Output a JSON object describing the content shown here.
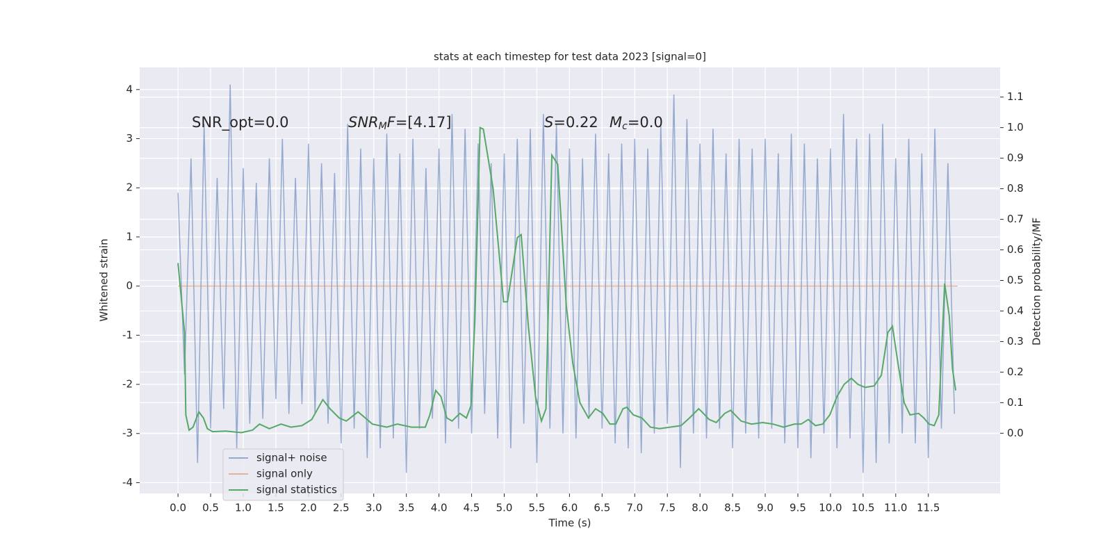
{
  "chart_data": {
    "type": "line",
    "title": "stats at each timestep for test data 2023 [signal=0]",
    "xlabel": "Time (s)",
    "ylabel": "Whitened strain",
    "y2label": "Detection probability/MF",
    "annotations": [
      [
        "SNR_opt=0.0"
      ],
      [
        "SNR",
        "M",
        "F",
        "=[4.17]"
      ],
      [
        "S",
        "=0.22"
      ],
      [
        "M",
        "c",
        "=0.0"
      ]
    ],
    "xlim": [
      -0.587,
      12.6
    ],
    "xticks": [
      {
        "value": 0,
        "label": "0.0"
      },
      0.5,
      {
        "value": 1,
        "label": "1.0"
      },
      1.5,
      {
        "value": 2,
        "label": "2.0"
      },
      2.5,
      {
        "value": 3,
        "label": "3.0"
      },
      3.5,
      {
        "value": 4,
        "label": "4.0"
      },
      4.5,
      {
        "value": 5,
        "label": "5.0"
      },
      5.5,
      {
        "value": 6,
        "label": "6.0"
      },
      6.5,
      {
        "value": 7,
        "label": "7.0"
      },
      7.5,
      {
        "value": 8,
        "label": "8.0"
      },
      8.5,
      {
        "value": 9,
        "label": "9.0"
      },
      9.5,
      {
        "value": 10,
        "label": "10.0"
      },
      10.5,
      {
        "value": 11,
        "label": "11.0"
      },
      11.5
    ],
    "ylim": [
      -4.22,
      4.45
    ],
    "yticks": [
      -4,
      -3,
      -2,
      -1,
      0,
      1,
      2,
      3,
      4
    ],
    "y2lim": [
      -0.197,
      1.197
    ],
    "y2ticks": [
      {
        "value": 0,
        "label": "0.0"
      },
      0.1,
      0.2,
      0.3,
      0.4,
      0.5,
      0.6,
      0.7,
      0.8,
      0.9,
      {
        "value": 1,
        "label": "1.0"
      },
      1.1
    ],
    "grid": true,
    "legend_loc": "lower left",
    "series": [
      {
        "name": "signal+ noise",
        "color": "#4c72b0",
        "x": [
          0,
          0.1,
          0.2,
          0.3,
          0.4,
          0.5,
          0.6,
          0.7,
          0.8,
          0.9,
          1,
          1.1,
          1.2,
          1.3,
          1.4,
          1.5,
          1.6,
          1.7,
          1.8,
          1.9,
          2,
          2.1,
          2.2,
          2.3,
          2.4,
          2.5,
          2.6,
          2.7,
          2.8,
          2.9,
          3,
          3.1,
          3.2,
          3.3,
          3.4,
          3.5,
          3.6,
          3.7,
          3.8,
          3.9,
          4,
          4.1,
          4.2,
          4.3,
          4.4,
          4.5,
          4.6,
          4.7,
          4.8,
          4.9,
          5,
          5.1,
          5.2,
          5.3,
          5.4,
          5.5,
          5.6,
          5.7,
          5.8,
          5.9,
          6,
          6.1,
          6.2,
          6.3,
          6.4,
          6.5,
          6.6,
          6.7,
          6.8,
          6.9,
          7,
          7.1,
          7.2,
          7.3,
          7.4,
          7.5,
          7.6,
          7.7,
          7.8,
          7.9,
          8,
          8.1,
          8.2,
          8.3,
          8.4,
          8.5,
          8.6,
          8.7,
          8.8,
          8.9,
          9,
          9.1,
          9.2,
          9.3,
          9.4,
          9.5,
          9.6,
          9.7,
          9.8,
          9.9,
          10,
          10.1,
          10.2,
          10.3,
          10.4,
          10.5,
          10.6,
          10.7,
          10.8,
          10.9,
          11,
          11.1,
          11.2,
          11.3,
          11.4,
          11.5,
          11.6,
          11.7,
          11.8,
          11.9
        ],
        "values": [
          1.9,
          -1.8,
          2.6,
          -3.6,
          3.3,
          -2.9,
          2.2,
          -2.5,
          4.1,
          -3.3,
          2.4,
          -2.8,
          2.1,
          -2.7,
          2.6,
          -2.3,
          3.0,
          -2.6,
          2.2,
          -2.4,
          2.9,
          -2.6,
          2.5,
          -2.8,
          2.3,
          -3.2,
          3.3,
          -2.9,
          2.8,
          -3.5,
          2.6,
          -3.3,
          3.1,
          -3.1,
          2.7,
          -3.8,
          3.0,
          -2.9,
          2.4,
          -2.7,
          2.8,
          -3.2,
          3.5,
          -2.9,
          3.2,
          -3.0,
          2.9,
          -2.6,
          2.5,
          -3.1,
          2.7,
          -3.3,
          3.0,
          -2.8,
          3.2,
          -3.6,
          3.5,
          -2.9,
          3.3,
          -3.0,
          2.8,
          -3.1,
          2.6,
          -2.7,
          3.1,
          -2.9,
          2.7,
          -3.2,
          2.9,
          -3.3,
          3.0,
          -3.4,
          2.8,
          -3.0,
          3.3,
          -2.8,
          3.9,
          -3.7,
          3.4,
          -3.0,
          2.9,
          -3.1,
          3.2,
          -2.9,
          2.7,
          -3.3,
          3.0,
          -3.0,
          2.8,
          -3.1,
          3.0,
          -2.9,
          2.7,
          -3.2,
          3.1,
          -3.3,
          2.9,
          -3.5,
          2.6,
          -3.0,
          2.8,
          -3.3,
          3.5,
          -3.1,
          3.0,
          -3.8,
          3.1,
          -3.6,
          3.3,
          -3.2,
          2.6,
          -3.0,
          3.0,
          -3.2,
          2.7,
          -3.5,
          3.2,
          -2.9,
          2.5,
          -2.6
        ]
      },
      {
        "name": "signal only",
        "color": "#dd8452",
        "x": [
          0,
          11.95
        ],
        "values": [
          0,
          0
        ]
      },
      {
        "name": "signal statistics",
        "color": "#55a868",
        "axis": "y2",
        "x": [
          0,
          0.1,
          0.12,
          0.17,
          0.23,
          0.32,
          0.39,
          0.45,
          0.53,
          0.73,
          0.97,
          1.14,
          1.25,
          1.4,
          1.58,
          1.73,
          1.9,
          2.05,
          2.22,
          2.33,
          2.47,
          2.58,
          2.76,
          2.98,
          3.2,
          3.36,
          3.58,
          3.79,
          3.86,
          3.95,
          4.03,
          4.12,
          4.2,
          4.32,
          4.42,
          4.49,
          4.55,
          4.63,
          4.68,
          4.83,
          4.99,
          5.05,
          5.2,
          5.26,
          5.37,
          5.48,
          5.57,
          5.64,
          5.73,
          5.82,
          5.95,
          6.05,
          6.16,
          6.29,
          6.4,
          6.51,
          6.62,
          6.71,
          6.82,
          6.88,
          6.98,
          7.11,
          7.24,
          7.38,
          7.54,
          7.71,
          7.84,
          7.98,
          8.03,
          8.14,
          8.25,
          8.38,
          8.47,
          8.63,
          8.79,
          8.96,
          9.12,
          9.28,
          9.45,
          9.55,
          9.66,
          9.77,
          9.88,
          9.99,
          10.1,
          10.21,
          10.32,
          10.42,
          10.53,
          10.67,
          10.78,
          10.88,
          10.95,
          11.03,
          11.13,
          11.22,
          11.35,
          11.43,
          11.51,
          11.59,
          11.66,
          11.75,
          11.82,
          11.87,
          11.92
        ],
        "values": [
          0.557,
          0.33,
          0.06,
          0.01,
          0.02,
          0.07,
          0.05,
          0.015,
          0.005,
          0.007,
          0.002,
          0.01,
          0.03,
          0.015,
          0.03,
          0.02,
          0.025,
          0.045,
          0.11,
          0.08,
          0.05,
          0.04,
          0.07,
          0.03,
          0.02,
          0.03,
          0.02,
          0.02,
          0.06,
          0.14,
          0.12,
          0.05,
          0.04,
          0.065,
          0.05,
          0.09,
          0.37,
          1.0,
          0.995,
          0.8,
          0.43,
          0.43,
          0.64,
          0.65,
          0.35,
          0.12,
          0.04,
          0.08,
          0.91,
          0.88,
          0.42,
          0.23,
          0.1,
          0.05,
          0.08,
          0.065,
          0.03,
          0.03,
          0.08,
          0.085,
          0.06,
          0.05,
          0.02,
          0.015,
          0.02,
          0.025,
          0.05,
          0.08,
          0.07,
          0.045,
          0.035,
          0.065,
          0.075,
          0.04,
          0.03,
          0.035,
          0.03,
          0.02,
          0.03,
          0.03,
          0.045,
          0.025,
          0.03,
          0.06,
          0.12,
          0.16,
          0.18,
          0.16,
          0.15,
          0.155,
          0.19,
          0.33,
          0.35,
          0.235,
          0.1,
          0.06,
          0.065,
          0.05,
          0.03,
          0.025,
          0.06,
          0.49,
          0.385,
          0.21,
          0.14
        ]
      }
    ]
  }
}
